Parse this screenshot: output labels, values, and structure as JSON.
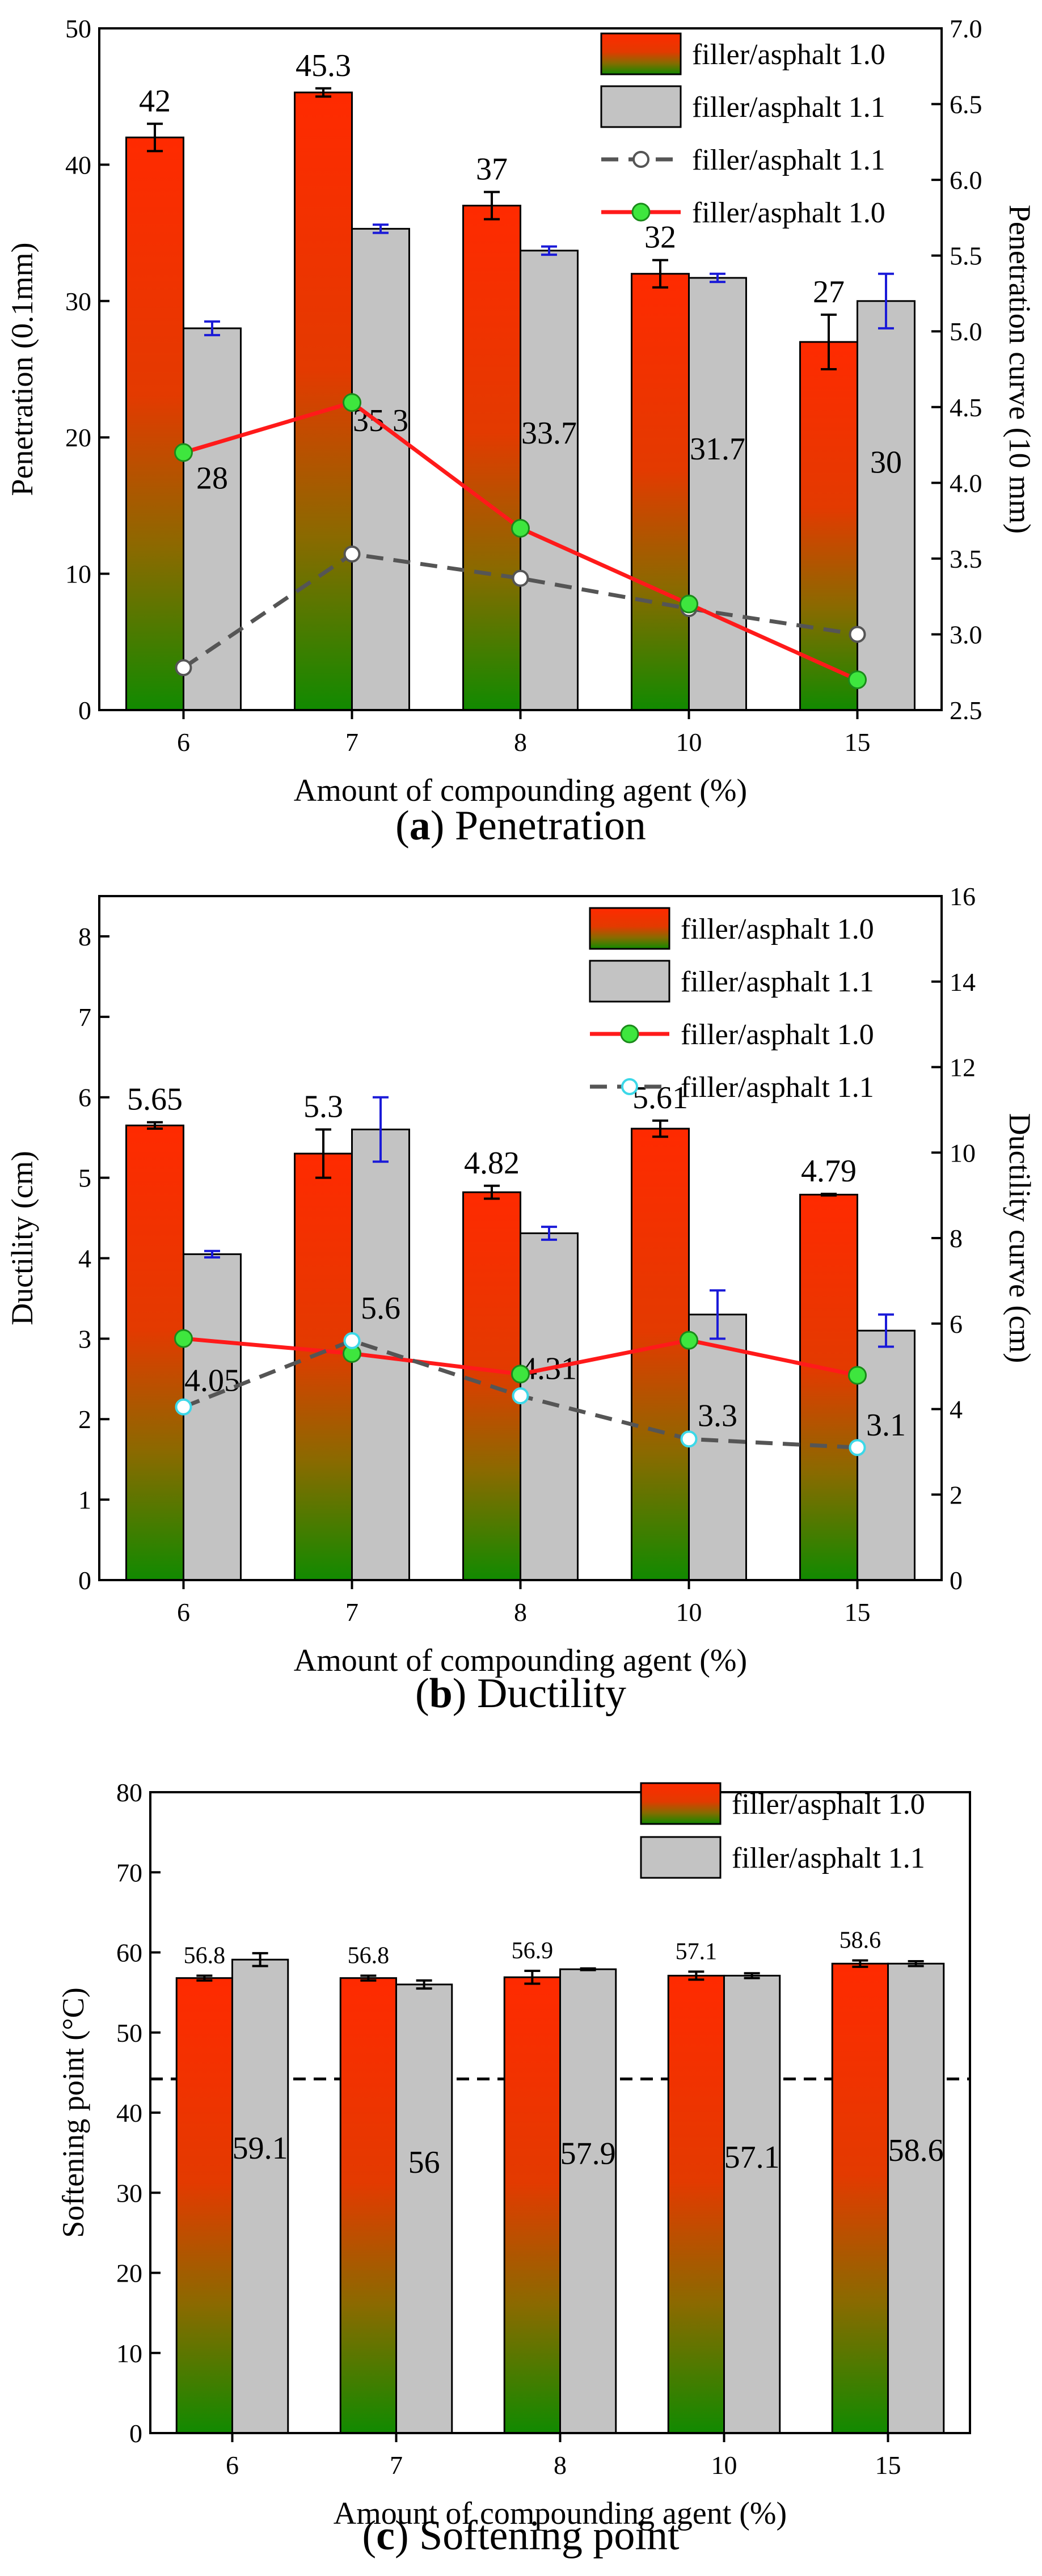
{
  "chart_data": [
    {
      "type": "bar",
      "panel": "a",
      "caption_label": "a",
      "caption_text": "Penetration",
      "categories": [
        "6",
        "7",
        "8",
        "10",
        "15"
      ],
      "xlabel": "Amount of compounding agent (%)",
      "ylabel": "Penetration (0.1mm)",
      "ylim": [
        0,
        50
      ],
      "yticks": [
        "0",
        "10",
        "20",
        "30",
        "40",
        "50"
      ],
      "y2label": "Penetration curve (10 mm)",
      "y2lim": [
        2.5,
        7.0
      ],
      "y2ticks": [
        "2.5",
        "3.0",
        "3.5",
        "4.0",
        "4.5",
        "5.0",
        "5.5",
        "6.0",
        "6.5",
        "7.0"
      ],
      "series": [
        {
          "name": "filler/asphalt 1.0",
          "kind": "bar",
          "style": "gradient",
          "values": [
            42,
            45.3,
            37,
            32,
            27
          ],
          "errors": [
            1.0,
            0.3,
            1.0,
            1.0,
            2.0
          ],
          "labels": [
            "42",
            "45.3",
            "37",
            "32",
            "27"
          ],
          "label_pos": "top",
          "error_color": "#000000"
        },
        {
          "name": "filler/asphalt 1.1",
          "kind": "bar",
          "style": "gray",
          "values": [
            28,
            35.3,
            33.7,
            31.7,
            30
          ],
          "errors": [
            0.5,
            0.3,
            0.3,
            0.3,
            2.0
          ],
          "labels": [
            "28",
            "35.3",
            "33.7",
            "31.7",
            "30"
          ],
          "label_pos": "inside",
          "error_color": "#1a1ad8"
        },
        {
          "name": "filler/asphalt 1.1",
          "kind": "line",
          "axis": "right",
          "style": "dashed",
          "values": [
            2.78,
            3.53,
            3.37,
            3.17,
            3.0
          ]
        },
        {
          "name": "filler/asphalt 1.0",
          "kind": "line",
          "axis": "right",
          "style": "solid",
          "values": [
            4.2,
            4.53,
            3.7,
            3.2,
            2.7
          ]
        }
      ],
      "legend": {
        "position": "top-right",
        "entries": [
          {
            "label": "filler/asphalt 1.0",
            "kind": "bar-gradient"
          },
          {
            "label": "filler/asphalt 1.1",
            "kind": "bar-gray"
          },
          {
            "label": "filler/asphalt 1.1",
            "kind": "line-dashed"
          },
          {
            "label": "filler/asphalt 1.0",
            "kind": "line-solid"
          }
        ]
      }
    },
    {
      "type": "bar",
      "panel": "b",
      "caption_label": "b",
      "caption_text": "Ductility",
      "categories": [
        "6",
        "7",
        "8",
        "10",
        "15"
      ],
      "xlabel": "Amount of compounding agent (%)",
      "ylabel": "Ductility (cm)",
      "ylim": [
        0,
        8.5
      ],
      "yticks": [
        "0",
        "1",
        "2",
        "3",
        "4",
        "5",
        "6",
        "7",
        "8"
      ],
      "y2label": "Ductility curve (cm)",
      "y2lim": [
        0,
        16
      ],
      "y2ticks": [
        "0",
        "2",
        "4",
        "6",
        "8",
        "10",
        "12",
        "14",
        "16"
      ],
      "series": [
        {
          "name": "filler/asphalt 1.0",
          "kind": "bar",
          "style": "gradient",
          "values": [
            5.65,
            5.3,
            4.82,
            5.61,
            4.79
          ],
          "errors": [
            0.04,
            0.3,
            0.08,
            0.1,
            0.01
          ],
          "labels": [
            "5.65",
            "5.3",
            "4.82",
            "5.61",
            "4.79"
          ],
          "label_pos": "top",
          "error_color": "#000000"
        },
        {
          "name": "filler/asphalt 1.1",
          "kind": "bar",
          "style": "gray",
          "values": [
            4.05,
            5.6,
            4.31,
            3.3,
            3.1
          ],
          "errors": [
            0.04,
            0.4,
            0.08,
            0.3,
            0.2
          ],
          "labels": [
            "4.05",
            "5.6",
            "4.31",
            "3.3",
            "3.1"
          ],
          "label_pos": "inside",
          "error_color": "#1a1ad8"
        },
        {
          "name": "filler/asphalt 1.0",
          "kind": "line",
          "axis": "right",
          "style": "solid",
          "values": [
            5.65,
            5.3,
            4.82,
            5.61,
            4.79
          ]
        },
        {
          "name": "filler/asphalt 1.1",
          "kind": "line",
          "axis": "right",
          "style": "dashed",
          "values": [
            4.05,
            5.6,
            4.31,
            3.3,
            3.1
          ]
        }
      ],
      "legend": {
        "position": "top-right",
        "entries": [
          {
            "label": "filler/asphalt 1.0",
            "kind": "bar-gradient"
          },
          {
            "label": "filler/asphalt 1.1",
            "kind": "bar-gray"
          },
          {
            "label": "filler/asphalt 1.0",
            "kind": "line-solid"
          },
          {
            "label": "filler/asphalt 1.1",
            "kind": "line-dashed-cyan"
          }
        ]
      }
    },
    {
      "type": "bar",
      "panel": "c",
      "caption_label": "c",
      "caption_text": "Softening point",
      "categories": [
        "6",
        "7",
        "8",
        "10",
        "15"
      ],
      "xlabel": "Amount of compounding agent (%)",
      "ylabel": "Softening point (°C)",
      "ylim": [
        0,
        80
      ],
      "yticks": [
        "0",
        "10",
        "20",
        "30",
        "40",
        "50",
        "60",
        "70",
        "80"
      ],
      "reference_line": 44.2,
      "series": [
        {
          "name": "filler/asphalt 1.0",
          "kind": "bar",
          "style": "gradient",
          "values": [
            56.8,
            56.8,
            56.9,
            57.1,
            58.6
          ],
          "errors": [
            0.3,
            0.3,
            0.8,
            0.5,
            0.4
          ],
          "labels": [
            "56.8",
            "56.8",
            "56.9",
            "57.1",
            "58.6"
          ],
          "label_pos": "top",
          "error_color": "#000000"
        },
        {
          "name": "filler/asphalt 1.1",
          "kind": "bar",
          "style": "gray",
          "values": [
            59.1,
            56,
            57.9,
            57.1,
            58.6
          ],
          "errors": [
            0.8,
            0.5,
            0.1,
            0.3,
            0.3
          ],
          "labels": [
            "59.1",
            "56",
            "57.9",
            "57.1",
            "58.6"
          ],
          "label_pos": "inside",
          "error_color": "#000000"
        }
      ],
      "legend": {
        "position": "top-right",
        "entries": [
          {
            "label": "filler/asphalt 1.0",
            "kind": "bar-gradient"
          },
          {
            "label": "filler/asphalt 1.1",
            "kind": "bar-gray"
          }
        ]
      }
    }
  ]
}
